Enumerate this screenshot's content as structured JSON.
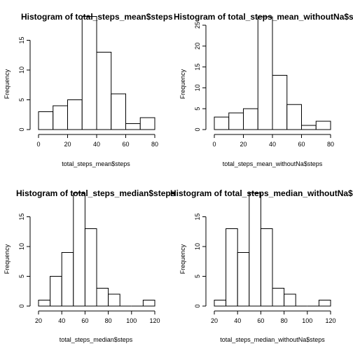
{
  "figure": {
    "layout": "2x2 histograms"
  },
  "chart_data": [
    {
      "type": "bar",
      "title": "Histogram of total_steps_mean$steps",
      "xlabel": "total_steps_mean$steps",
      "ylabel": "Frequency",
      "bins": [
        [
          0,
          10
        ],
        [
          10,
          20
        ],
        [
          20,
          30
        ],
        [
          30,
          40
        ],
        [
          40,
          50
        ],
        [
          50,
          60
        ],
        [
          60,
          70
        ],
        [
          70,
          80
        ]
      ],
      "values": [
        3,
        4,
        5,
        19,
        13,
        6,
        1,
        2
      ],
      "xlim": [
        0,
        80
      ],
      "ylim": [
        0,
        19
      ],
      "xticks": [
        0,
        20,
        40,
        60,
        80
      ],
      "yticks": [
        0,
        5,
        10,
        15
      ]
    },
    {
      "type": "bar",
      "title": "Histogram of total_steps_mean_withoutNa$steps",
      "xlabel": "total_steps_mean_withoutNa$steps",
      "ylabel": "Frequency",
      "bins": [
        [
          0,
          10
        ],
        [
          10,
          20
        ],
        [
          20,
          30
        ],
        [
          30,
          40
        ],
        [
          40,
          50
        ],
        [
          50,
          60
        ],
        [
          60,
          70
        ],
        [
          70,
          80
        ]
      ],
      "values": [
        3,
        4,
        5,
        27,
        13,
        6,
        1,
        2
      ],
      "xlim": [
        0,
        80
      ],
      "ylim": [
        0,
        27
      ],
      "xticks": [
        0,
        20,
        40,
        60,
        80
      ],
      "yticks": [
        0,
        5,
        10,
        15,
        20,
        25
      ]
    },
    {
      "type": "bar",
      "title": "Histogram of total_steps_median$steps",
      "xlabel": "total_steps_median$steps",
      "ylabel": "Frequency",
      "bins": [
        [
          20,
          30
        ],
        [
          30,
          40
        ],
        [
          40,
          50
        ],
        [
          50,
          60
        ],
        [
          60,
          70
        ],
        [
          70,
          80
        ],
        [
          80,
          90
        ],
        [
          90,
          100
        ],
        [
          100,
          110
        ],
        [
          110,
          120
        ]
      ],
      "values": [
        1,
        5,
        9,
        19,
        13,
        3,
        2,
        0,
        0,
        1
      ],
      "xlim": [
        20,
        120
      ],
      "ylim": [
        0,
        19
      ],
      "xticks": [
        20,
        40,
        60,
        80,
        100,
        120
      ],
      "yticks": [
        0,
        5,
        10,
        15
      ]
    },
    {
      "type": "bar",
      "title": "Histogram of total_steps_median_withoutNa$steps",
      "xlabel": "total_steps_median_withoutNa$steps",
      "ylabel": "Frequency",
      "bins": [
        [
          20,
          30
        ],
        [
          30,
          40
        ],
        [
          40,
          50
        ],
        [
          50,
          60
        ],
        [
          60,
          70
        ],
        [
          70,
          80
        ],
        [
          80,
          90
        ],
        [
          90,
          100
        ],
        [
          100,
          110
        ],
        [
          110,
          120
        ]
      ],
      "values": [
        1,
        13,
        9,
        19,
        13,
        3,
        2,
        0,
        0,
        1
      ],
      "xlim": [
        20,
        120
      ],
      "ylim": [
        0,
        19
      ],
      "xticks": [
        20,
        40,
        60,
        80,
        100,
        120
      ],
      "yticks": [
        0,
        5,
        10,
        15
      ]
    }
  ]
}
